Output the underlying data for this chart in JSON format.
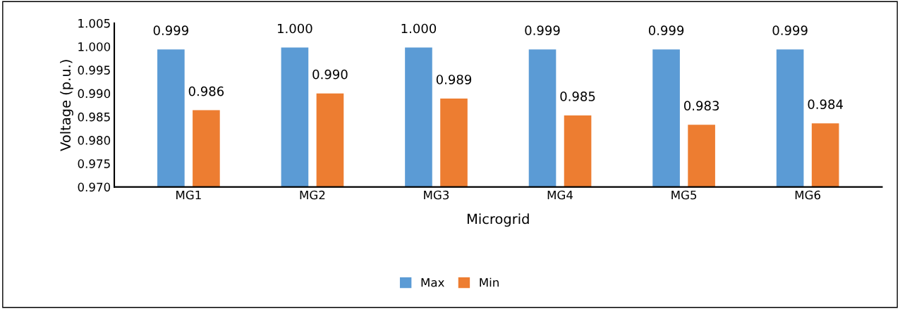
{
  "chart_data": {
    "type": "bar",
    "xlabel": "Microgrid",
    "ylabel": "Voltage (p.u.)",
    "categories": [
      "MG1",
      "MG2",
      "MG3",
      "MG4",
      "MG5",
      "MG6"
    ],
    "series": [
      {
        "name": "Max",
        "color": "#5b9bd5",
        "values": [
          0.9994,
          0.9998,
          0.9998,
          0.9994,
          0.9994,
          0.9994
        ],
        "value_labels": [
          "0.999",
          "1.000",
          "1.000",
          "0.999",
          "0.999",
          "0.999"
        ]
      },
      {
        "name": "Min",
        "color": "#ed7d31",
        "values": [
          0.9864,
          0.99,
          0.9889,
          0.9853,
          0.9833,
          0.9836
        ],
        "value_labels": [
          "0.986",
          "0.990",
          "0.989",
          "0.985",
          "0.983",
          "0.984"
        ]
      }
    ],
    "ylim": [
      0.97,
      1.005
    ],
    "yticks": [
      {
        "value": 0.97,
        "label": "0.970"
      },
      {
        "value": 0.975,
        "label": "0.975"
      },
      {
        "value": 0.98,
        "label": "0.980"
      },
      {
        "value": 0.985,
        "label": "0.985"
      },
      {
        "value": 0.99,
        "label": "0.990"
      },
      {
        "value": 0.995,
        "label": "0.995"
      },
      {
        "value": 1.0,
        "label": "1.000"
      },
      {
        "value": 1.005,
        "label": "1.005"
      }
    ],
    "grid": false,
    "legend": "bottom"
  }
}
